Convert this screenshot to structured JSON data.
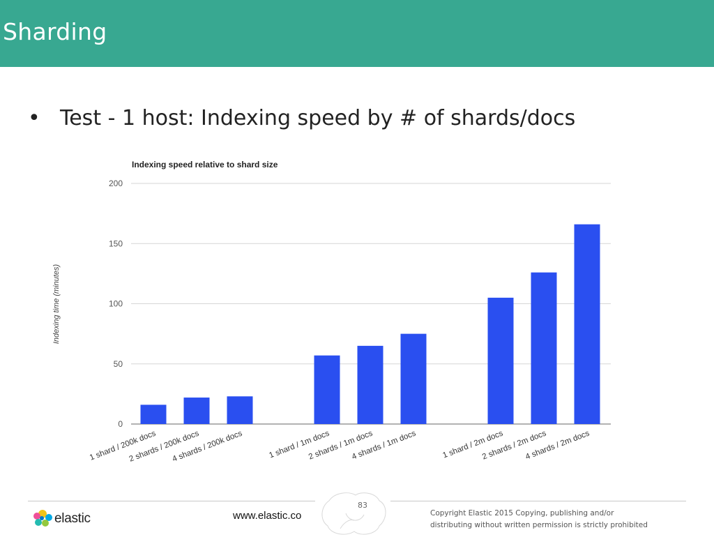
{
  "header": {
    "title": "Sharding"
  },
  "bullet": {
    "marker": "•",
    "text": "Test - 1 host: Indexing speed by # of shards/docs"
  },
  "chart_data": {
    "type": "bar",
    "title": "Indexing speed relative to shard size",
    "xlabel": "",
    "ylabel": "Indexing time (minutes)",
    "ylim": [
      0,
      200
    ],
    "yticks": [
      0,
      50,
      100,
      150,
      200
    ],
    "grid": true,
    "legend": "none",
    "bar_color": "#2a4ff0",
    "categories": [
      "1 shard / 200k docs",
      "2 shards / 200k docs",
      "4 shards / 200k docs",
      "1 shard / 1m docs",
      "2 shards / 1m docs",
      "4 shards / 1m docs",
      "1 shard / 2m docs",
      "2 shards / 2m docs",
      "4 shards / 2m docs"
    ],
    "values": [
      16,
      22,
      23,
      57,
      65,
      75,
      105,
      126,
      166
    ]
  },
  "footer": {
    "logo_text": "elastic",
    "url": "www.elastic.co",
    "page_number": "83",
    "copyright_line1": "Copyright Elastic 2015 Copying, publishing and/or",
    "copyright_line2": "distributing without written permission is strictly prohibited"
  }
}
